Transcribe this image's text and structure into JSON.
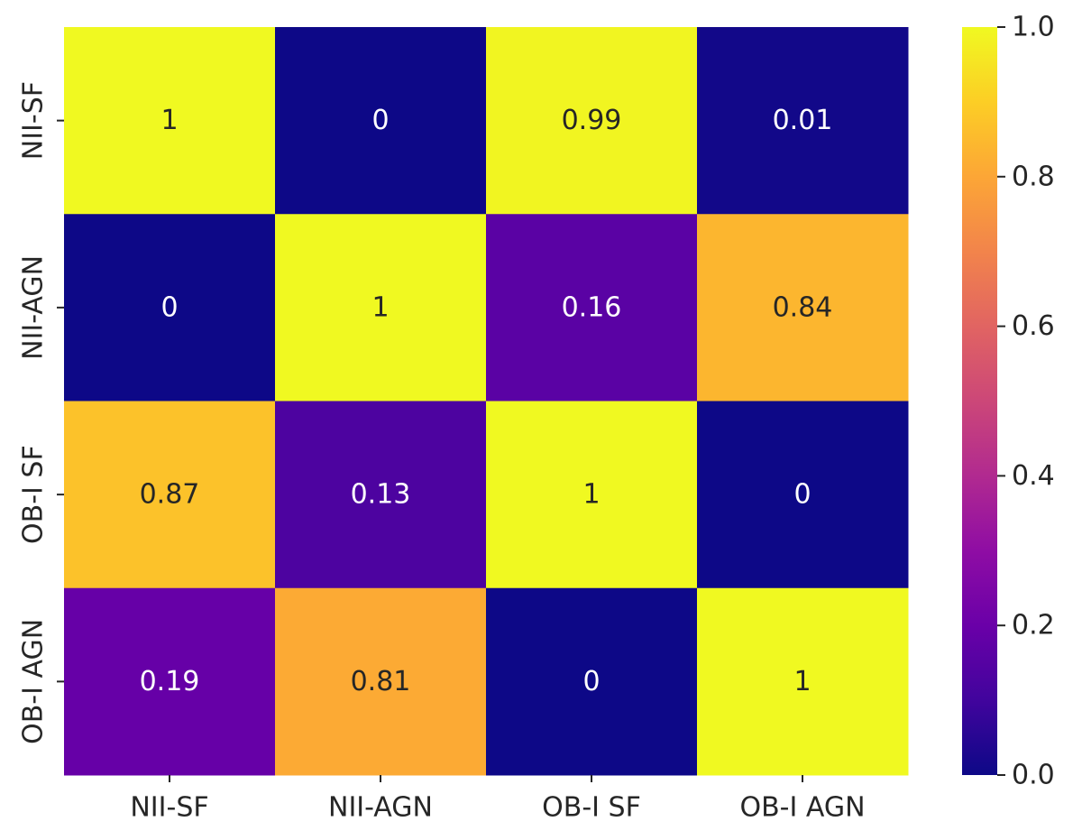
{
  "chart_data": {
    "type": "heatmap",
    "x_tick_labels": [
      "NII-SF",
      "NII-AGN",
      "OB-I SF",
      "OB-I AGN"
    ],
    "y_tick_labels": [
      "NII-SF",
      "NII-AGN",
      "OB-I SF",
      "OB-I AGN"
    ],
    "values": [
      [
        1,
        0,
        0.99,
        0.01
      ],
      [
        0,
        1,
        0.16,
        0.84
      ],
      [
        0.87,
        0.13,
        1,
        0
      ],
      [
        0.19,
        0.81,
        0,
        1
      ]
    ],
    "cell_labels": [
      [
        "1",
        "0",
        "0.99",
        "0.01"
      ],
      [
        "0",
        "1",
        "0.16",
        "0.84"
      ],
      [
        "0.87",
        "0.13",
        "1",
        "0"
      ],
      [
        "0.19",
        "0.81",
        "0",
        "1"
      ]
    ],
    "colormap": "plasma",
    "colorbar": {
      "range": [
        0.0,
        1.0
      ],
      "ticks": [
        0.0,
        0.2,
        0.4,
        0.6,
        0.8,
        1.0
      ],
      "tick_labels": [
        "0.0",
        "0.2",
        "0.4",
        "0.6",
        "0.8",
        "1.0"
      ],
      "placement": "right"
    },
    "title": "",
    "xlabel": "",
    "ylabel": ""
  }
}
